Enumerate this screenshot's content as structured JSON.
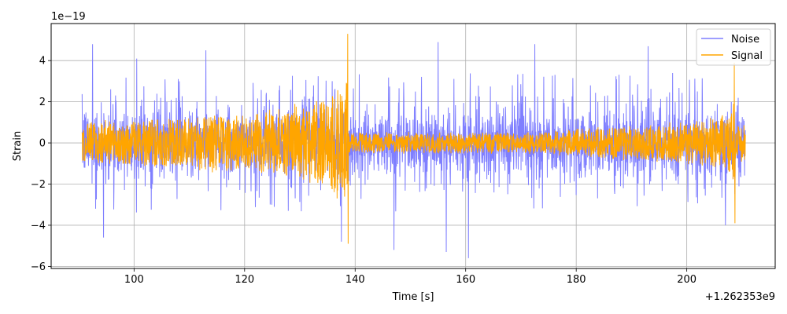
{
  "chart_data": {
    "type": "line",
    "xlabel": "Time [s]",
    "ylabel": "Strain",
    "x_offset_text": "+1.262353e9",
    "y_scale_text": "1e−19",
    "xlim": [
      85,
      216
    ],
    "ylim": [
      -6.1,
      5.8
    ],
    "x_ticks": [
      100,
      120,
      140,
      160,
      180,
      200
    ],
    "x_tick_labels": [
      "100",
      "120",
      "140",
      "160",
      "180",
      "200"
    ],
    "y_ticks": [
      -6,
      -4,
      -2,
      0,
      2,
      4
    ],
    "y_tick_labels": [
      "−6",
      "−4",
      "−2",
      "0",
      "2",
      "4"
    ],
    "grid": true,
    "legend_position": "top-right",
    "series": [
      {
        "name": "Noise",
        "color": "#7f7fff",
        "x_range": [
          90.6,
          210.6
        ],
        "typical_envelope": [
          -1.9,
          1.9
        ],
        "peaks": [
          {
            "x": 92.5,
            "y": 4.8
          },
          {
            "x": 94.5,
            "y": -4.6
          },
          {
            "x": 100.5,
            "y": 4.1
          },
          {
            "x": 113.0,
            "y": 4.5
          },
          {
            "x": 137.5,
            "y": -4.8
          },
          {
            "x": 147.0,
            "y": -5.2
          },
          {
            "x": 155.0,
            "y": 4.9
          },
          {
            "x": 156.5,
            "y": -5.3
          },
          {
            "x": 160.5,
            "y": -5.6
          },
          {
            "x": 172.5,
            "y": 4.8
          },
          {
            "x": 193.0,
            "y": 4.7
          },
          {
            "x": 207.0,
            "y": -4.0
          }
        ]
      },
      {
        "name": "Signal",
        "color": "#ffa500",
        "x_range": [
          90.6,
          210.6
        ],
        "envelope": [
          {
            "x": 90.6,
            "amp": 1.0
          },
          {
            "x": 120.0,
            "amp": 1.4
          },
          {
            "x": 132.0,
            "amp": 1.9
          },
          {
            "x": 137.5,
            "amp": 2.8
          },
          {
            "x": 138.65,
            "amp": 3.3
          },
          {
            "x": 138.8,
            "amp": 0.5
          },
          {
            "x": 170.0,
            "amp": 0.5
          },
          {
            "x": 200.0,
            "amp": 1.0
          },
          {
            "x": 208.0,
            "amp": 1.5
          },
          {
            "x": 208.6,
            "amp": 2.5
          },
          {
            "x": 208.8,
            "amp": 0.9
          },
          {
            "x": 210.6,
            "amp": 0.9
          }
        ],
        "peaks": [
          {
            "x": 138.65,
            "y": 5.3
          },
          {
            "x": 138.75,
            "y": -4.9
          },
          {
            "x": 208.6,
            "y": 3.9
          },
          {
            "x": 208.7,
            "y": -3.9
          }
        ]
      }
    ]
  }
}
